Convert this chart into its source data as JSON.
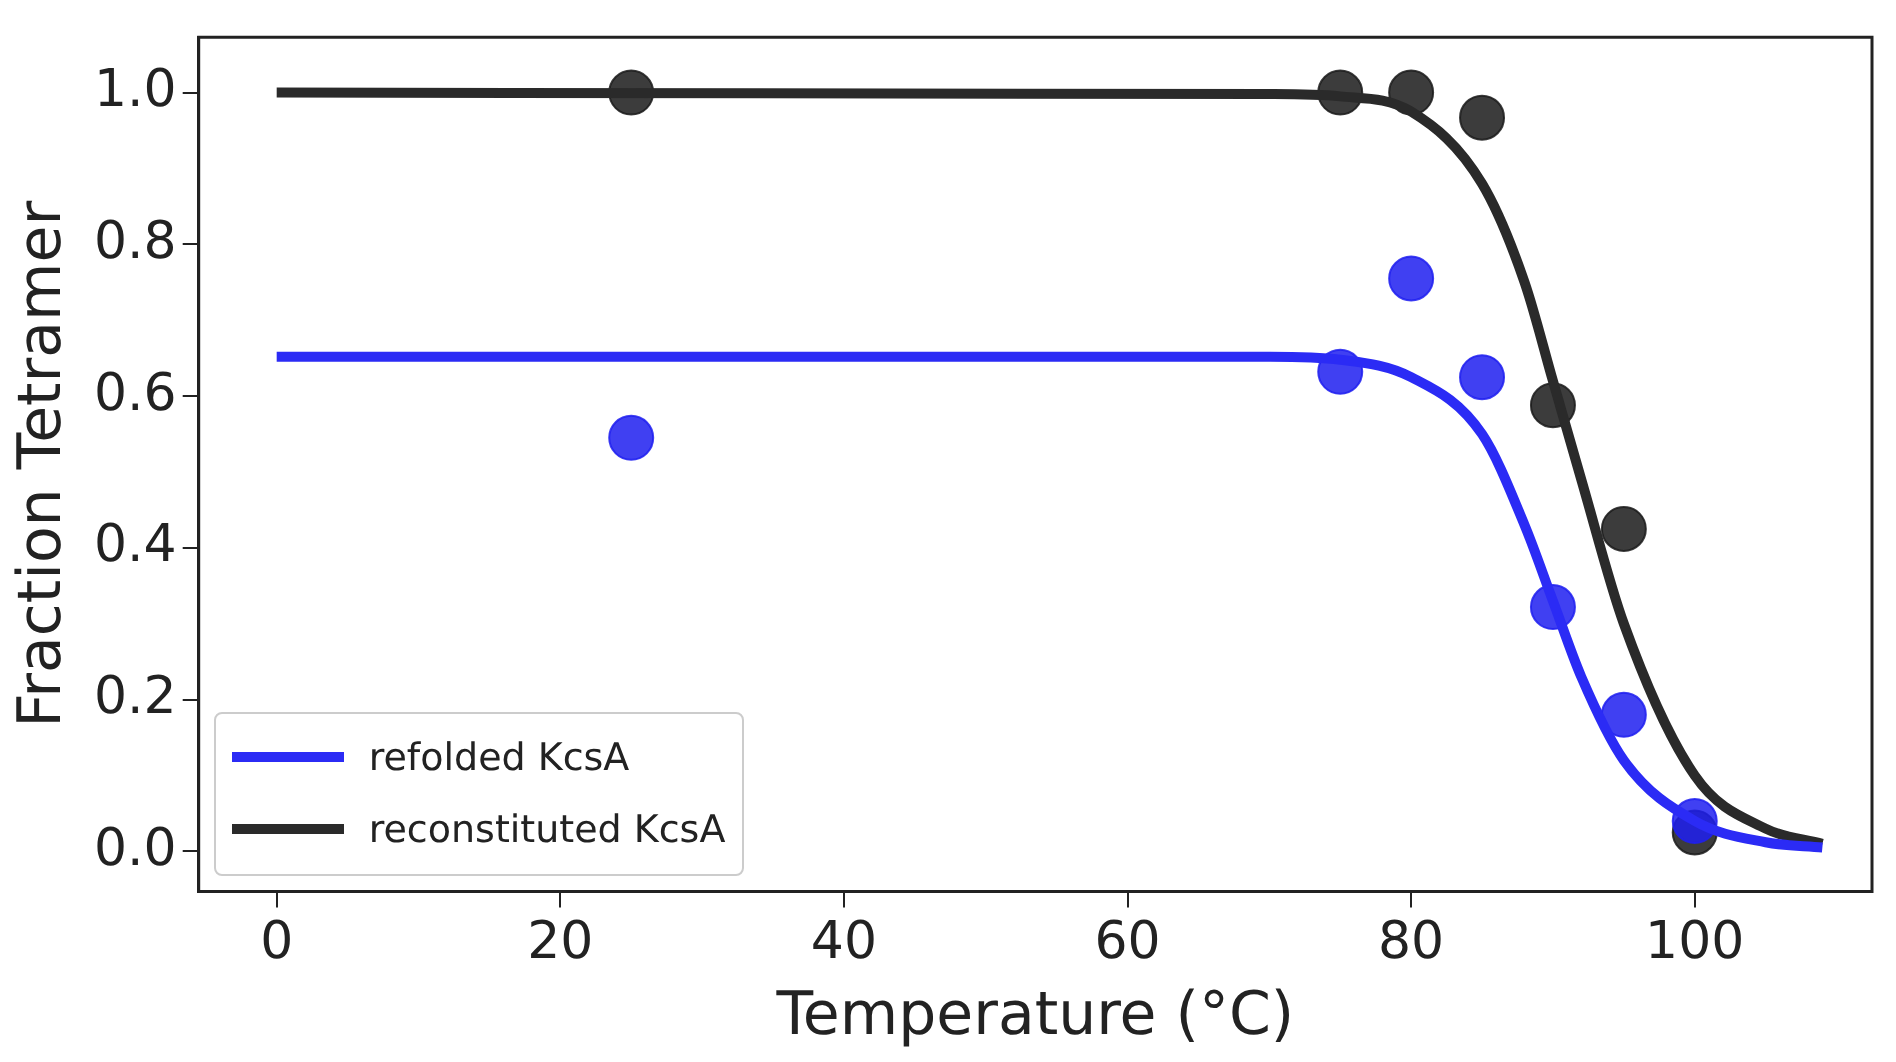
{
  "chart_data": {
    "type": "scatter",
    "xlabel": "Temperature (°C)",
    "ylabel": "Fraction Tetramer",
    "xlim": [
      -5.5,
      112.5
    ],
    "xticks": [
      0,
      20,
      40,
      60,
      80,
      100
    ],
    "ylim": [
      -0.053,
      1.073
    ],
    "yticks": [
      {
        "value": 0,
        "label": "0.0"
      },
      0.2,
      0.4,
      0.6,
      0.8,
      {
        "value": 1,
        "label": "1.0"
      }
    ],
    "grid": false,
    "legend": "bottom left",
    "marker": "circle",
    "series": [
      {
        "color": "#1f1ff0",
        "x": [
          25,
          75,
          80,
          85,
          90,
          95,
          100
        ],
        "values": [
          0.545,
          0.632,
          0.755,
          0.625,
          0.322,
          0.18,
          0.04
        ]
      },
      {
        "color": "#1a1a1a",
        "x": [
          25,
          75,
          80,
          85,
          90,
          95,
          100
        ],
        "values": [
          1.0,
          1.0,
          1.0,
          0.967,
          0.588,
          0.425,
          0.025
        ]
      },
      {
        "type": "line",
        "name": "refolded KcsA",
        "color": "#2b2bf5",
        "marker": "none",
        "x": [
          0,
          70,
          75,
          80,
          85,
          88,
          90,
          92,
          95,
          100,
          105,
          109
        ],
        "values": [
          0.652,
          0.652,
          0.648,
          0.625,
          0.55,
          0.43,
          0.33,
          0.23,
          0.12,
          0.04,
          0.012,
          0.005
        ]
      },
      {
        "type": "line",
        "name": "reconstituted KcsA",
        "color": "#2a2a2a",
        "marker": "none",
        "x": [
          0,
          70,
          75,
          80,
          85,
          88,
          90,
          92,
          95,
          100,
          105,
          109
        ],
        "values": [
          1.0,
          0.998,
          0.995,
          0.975,
          0.88,
          0.75,
          0.62,
          0.49,
          0.3,
          0.1,
          0.03,
          0.01
        ]
      }
    ]
  }
}
